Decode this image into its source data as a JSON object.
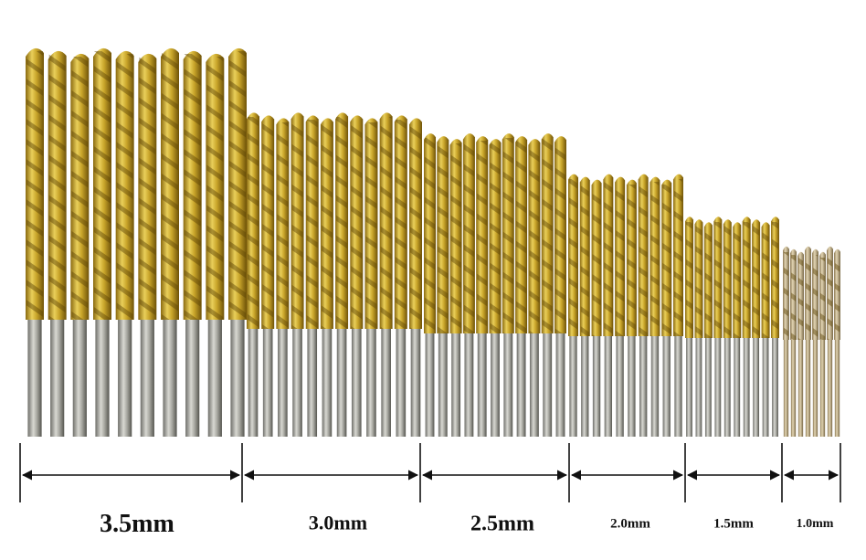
{
  "groups": [
    {
      "label": "3.5mm"
    },
    {
      "label": "3.0mm"
    },
    {
      "label": "2.5mm"
    },
    {
      "label": "2.0mm"
    },
    {
      "label": "1.5mm"
    },
    {
      "label": "1.0mm"
    }
  ]
}
